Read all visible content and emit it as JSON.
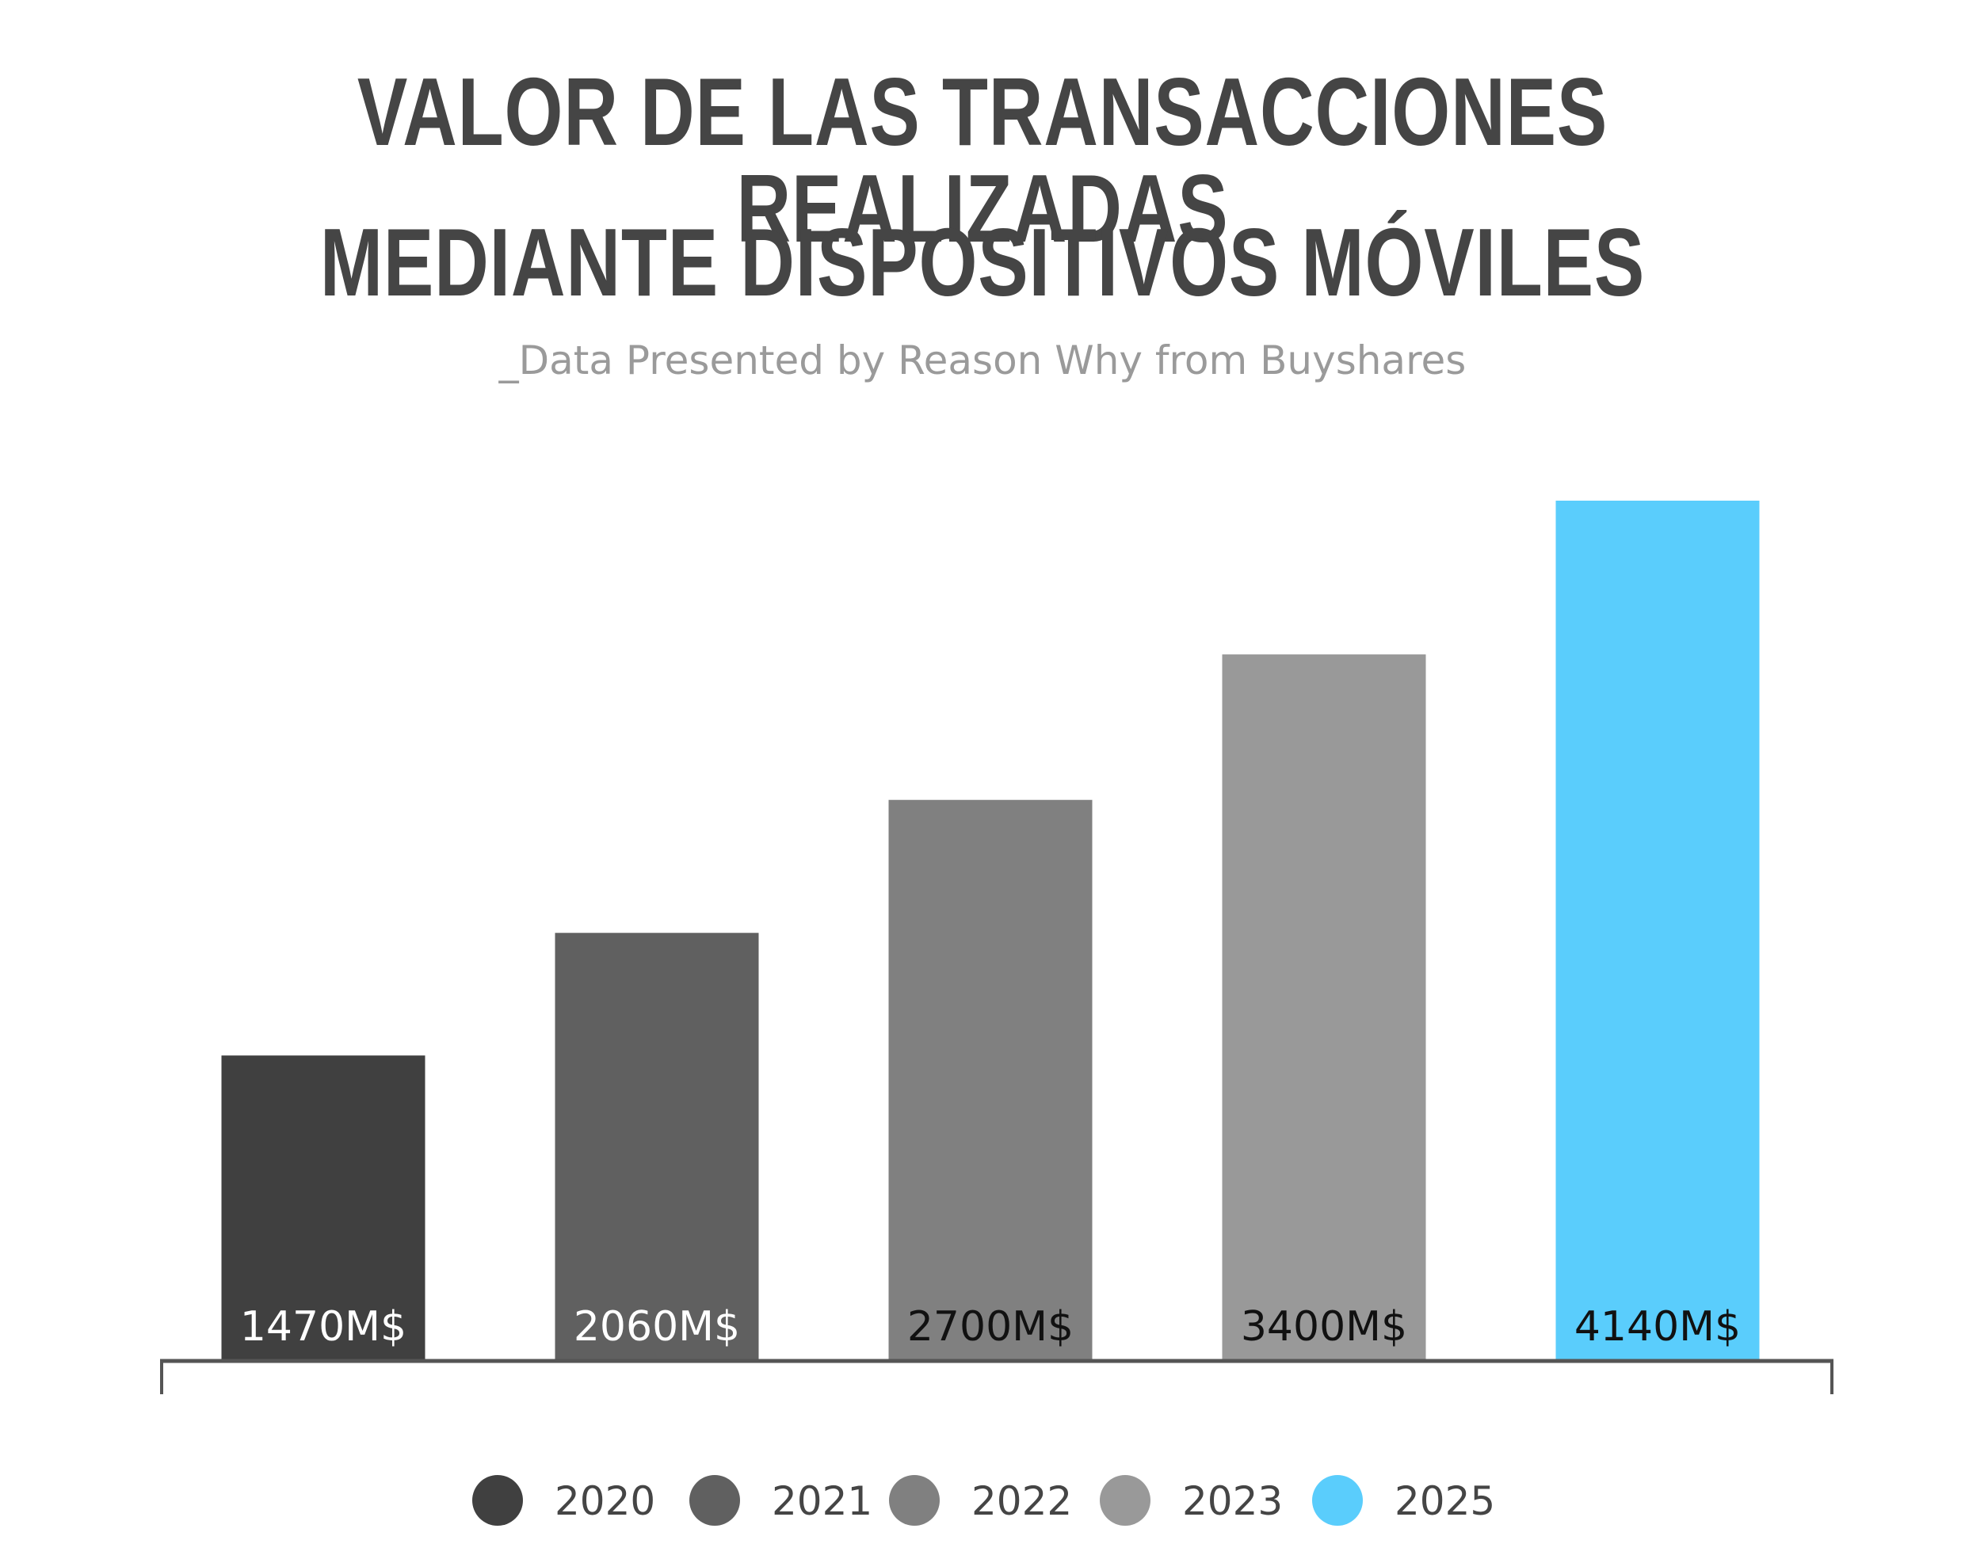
{
  "chart_data": {
    "type": "bar",
    "title_lines": [
      "VALOR DE LAS TRANSACCIONES REALIZADAS",
      "MEDIANTE DISPOSITIVOS MÓVILES"
    ],
    "subtitle": "_Data Presented by Reason Why from Buyshares",
    "categories": [
      "2020",
      "2021",
      "2022",
      "2023",
      "2025"
    ],
    "values": [
      1470,
      2060,
      2700,
      3400,
      4140
    ],
    "value_labels": [
      "1470M$",
      "2060M$",
      "2700M$",
      "3400M$",
      "4140M$"
    ],
    "colors": [
      "#404040",
      "#606060",
      "#808080",
      "#999999",
      "#5acdfc"
    ],
    "label_colors": [
      "#ffffff",
      "#ffffff",
      "#111111",
      "#111111",
      "#111111"
    ],
    "ylim": [
      0,
      4140
    ],
    "grid": false,
    "legend_position": "bottom-center",
    "axis_color": "#555555"
  }
}
